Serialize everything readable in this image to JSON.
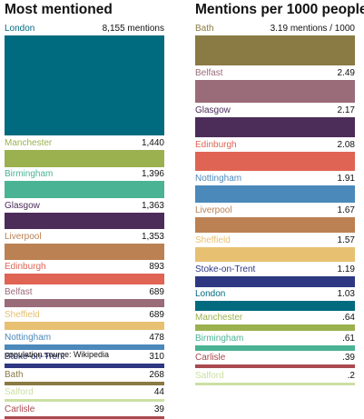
{
  "footer": {
    "source": "population source: Wikipedia"
  },
  "chart_data": [
    {
      "type": "bar",
      "title": "Most mentioned",
      "categories": [
        "London",
        "Manchester",
        "Birmingham",
        "Glasgow",
        "Liverpool",
        "Edinburgh",
        "Belfast",
        "Sheffield",
        "Nottingham",
        "Stoke-on-Trent",
        "Bath",
        "Salford",
        "Carlisle"
      ],
      "values": [
        8155,
        1440,
        1396,
        1363,
        1353,
        893,
        689,
        689,
        478,
        310,
        268,
        44,
        39
      ],
      "value_labels": [
        "8,155 mentions",
        "1,440",
        "1,396",
        "1,363",
        "1,353",
        "893",
        "689",
        "689",
        "478",
        "310",
        "268",
        "44",
        "39"
      ],
      "colors": [
        "#006a7f",
        "#9bb14f",
        "#4ab394",
        "#4c2d5a",
        "#bb8153",
        "#e06453",
        "#9a6b79",
        "#e7c072",
        "#4b89bb",
        "#2e3882",
        "#8a7a43",
        "#cbe0a3",
        "#a94a4f"
      ]
    },
    {
      "type": "bar",
      "title": "Mentions per 1000 people",
      "categories": [
        "Bath",
        "Belfast",
        "Glasgow",
        "Edinburgh",
        "Nottingham",
        "Liverpool",
        "Sheffield",
        "Stoke-on-Trent",
        "London",
        "Manchester",
        "Birmingham",
        "Carlisle",
        "Salford"
      ],
      "values": [
        3.19,
        2.49,
        2.17,
        2.08,
        1.91,
        1.67,
        1.57,
        1.19,
        1.03,
        0.64,
        0.61,
        0.39,
        0.2
      ],
      "value_labels": [
        "3.19 mentions / 1000",
        "2.49",
        "2.17",
        "2.08",
        "1.91",
        "1.67",
        "1.57",
        "1.19",
        "1.03",
        ".64",
        ".61",
        ".39",
        ".2"
      ],
      "colors": [
        "#8a7a43",
        "#9a6b79",
        "#4c2d5a",
        "#e06453",
        "#4b89bb",
        "#bb8153",
        "#e7c072",
        "#2e3882",
        "#006a7f",
        "#9bb14f",
        "#4ab394",
        "#a94a4f",
        "#cbe0a3"
      ]
    }
  ]
}
